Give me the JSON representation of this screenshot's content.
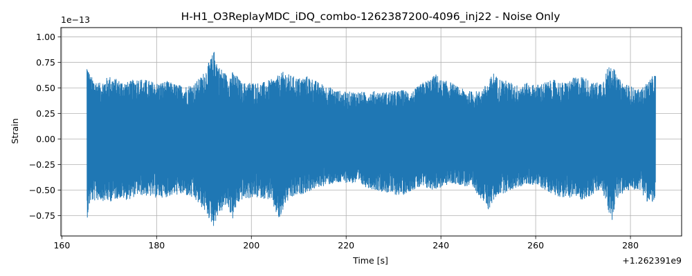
{
  "chart_data": {
    "type": "line",
    "title": "H-H1_O3ReplayMDC_iDQ_combo-1262387200-4096_inj22 - Noise Only",
    "xlabel": "Time [s]",
    "ylabel": "Strain",
    "x_offset_text": "+1.262391e9",
    "y_scale_text": "1e−13",
    "xlim": [
      159.8,
      290.8
    ],
    "ylim": [
      -0.95,
      1.09
    ],
    "x_ticks": [
      160,
      180,
      200,
      220,
      240,
      260,
      280
    ],
    "x_tick_labels": [
      "160",
      "180",
      "200",
      "220",
      "240",
      "260",
      "280"
    ],
    "y_ticks": [
      -0.75,
      -0.5,
      -0.25,
      0.0,
      0.25,
      0.5,
      0.75,
      1.0
    ],
    "y_tick_labels": [
      "−0.75",
      "−0.50",
      "−0.25",
      "0.00",
      "0.25",
      "0.50",
      "0.75",
      "1.00"
    ],
    "grid": true,
    "line_color": "#1f77b4",
    "series": [
      {
        "x_start": 165.3,
        "x_end": 285.3,
        "upper_envelope": [
          [
            165.3,
            0.76
          ],
          [
            166,
            0.62
          ],
          [
            168,
            0.55
          ],
          [
            170,
            0.62
          ],
          [
            172,
            0.58
          ],
          [
            174,
            0.56
          ],
          [
            176,
            0.6
          ],
          [
            178,
            0.58
          ],
          [
            180,
            0.55
          ],
          [
            182,
            0.57
          ],
          [
            184,
            0.54
          ],
          [
            186,
            0.52
          ],
          [
            188,
            0.55
          ],
          [
            189.5,
            0.62
          ],
          [
            190.5,
            0.7
          ],
          [
            191.5,
            0.8
          ],
          [
            192.3,
            0.88
          ],
          [
            193,
            0.72
          ],
          [
            194,
            0.68
          ],
          [
            195,
            0.62
          ],
          [
            196,
            0.66
          ],
          [
            197,
            0.62
          ],
          [
            198,
            0.55
          ],
          [
            200,
            0.56
          ],
          [
            202,
            0.55
          ],
          [
            204,
            0.58
          ],
          [
            206,
            0.63
          ],
          [
            207,
            0.67
          ],
          [
            208,
            0.63
          ],
          [
            210,
            0.6
          ],
          [
            212,
            0.62
          ],
          [
            214,
            0.56
          ],
          [
            216,
            0.52
          ],
          [
            218,
            0.48
          ],
          [
            220,
            0.46
          ],
          [
            222,
            0.47
          ],
          [
            224,
            0.46
          ],
          [
            226,
            0.47
          ],
          [
            228,
            0.46
          ],
          [
            230,
            0.47
          ],
          [
            232,
            0.48
          ],
          [
            234,
            0.47
          ],
          [
            236,
            0.55
          ],
          [
            238,
            0.6
          ],
          [
            239,
            0.64
          ],
          [
            240,
            0.58
          ],
          [
            242,
            0.56
          ],
          [
            244,
            0.5
          ],
          [
            246,
            0.47
          ],
          [
            248,
            0.47
          ],
          [
            250,
            0.55
          ],
          [
            251,
            0.66
          ],
          [
            252,
            0.6
          ],
          [
            254,
            0.57
          ],
          [
            256,
            0.53
          ],
          [
            258,
            0.55
          ],
          [
            260,
            0.53
          ],
          [
            262,
            0.56
          ],
          [
            264,
            0.58
          ],
          [
            266,
            0.55
          ],
          [
            268,
            0.6
          ],
          [
            270,
            0.62
          ],
          [
            272,
            0.55
          ],
          [
            274,
            0.57
          ],
          [
            276,
            0.78
          ],
          [
            277,
            0.62
          ],
          [
            278,
            0.57
          ],
          [
            280,
            0.52
          ],
          [
            282,
            0.48
          ],
          [
            284,
            0.58
          ],
          [
            285.3,
            0.65
          ]
        ],
        "lower_envelope": [
          [
            165.3,
            -0.79
          ],
          [
            166,
            -0.62
          ],
          [
            168,
            -0.6
          ],
          [
            170,
            -0.62
          ],
          [
            172,
            -0.58
          ],
          [
            174,
            -0.6
          ],
          [
            176,
            -0.55
          ],
          [
            178,
            -0.56
          ],
          [
            180,
            -0.58
          ],
          [
            182,
            -0.57
          ],
          [
            184,
            -0.55
          ],
          [
            186,
            -0.55
          ],
          [
            188,
            -0.6
          ],
          [
            190,
            -0.7
          ],
          [
            192,
            -0.86
          ],
          [
            193,
            -0.75
          ],
          [
            194,
            -0.7
          ],
          [
            195,
            -0.65
          ],
          [
            196,
            -0.8
          ],
          [
            197,
            -0.65
          ],
          [
            198,
            -0.6
          ],
          [
            200,
            -0.58
          ],
          [
            202,
            -0.58
          ],
          [
            204,
            -0.6
          ],
          [
            206,
            -0.82
          ],
          [
            207,
            -0.65
          ],
          [
            208,
            -0.6
          ],
          [
            210,
            -0.55
          ],
          [
            212,
            -0.52
          ],
          [
            214,
            -0.48
          ],
          [
            216,
            -0.45
          ],
          [
            218,
            -0.44
          ],
          [
            220,
            -0.43
          ],
          [
            222,
            -0.44
          ],
          [
            224,
            -0.47
          ],
          [
            226,
            -0.5
          ],
          [
            228,
            -0.52
          ],
          [
            230,
            -0.55
          ],
          [
            232,
            -0.55
          ],
          [
            234,
            -0.5
          ],
          [
            236,
            -0.48
          ],
          [
            238,
            -0.5
          ],
          [
            240,
            -0.48
          ],
          [
            242,
            -0.44
          ],
          [
            244,
            -0.45
          ],
          [
            246,
            -0.48
          ],
          [
            248,
            -0.55
          ],
          [
            250,
            -0.7
          ],
          [
            251,
            -0.62
          ],
          [
            252,
            -0.55
          ],
          [
            254,
            -0.52
          ],
          [
            256,
            -0.48
          ],
          [
            258,
            -0.45
          ],
          [
            260,
            -0.45
          ],
          [
            262,
            -0.5
          ],
          [
            264,
            -0.55
          ],
          [
            266,
            -0.58
          ],
          [
            268,
            -0.57
          ],
          [
            270,
            -0.6
          ],
          [
            272,
            -0.55
          ],
          [
            274,
            -0.5
          ],
          [
            276,
            -0.82
          ],
          [
            277,
            -0.6
          ],
          [
            278,
            -0.55
          ],
          [
            280,
            -0.5
          ],
          [
            282,
            -0.5
          ],
          [
            284,
            -0.65
          ],
          [
            285.3,
            -0.6
          ]
        ]
      }
    ]
  }
}
